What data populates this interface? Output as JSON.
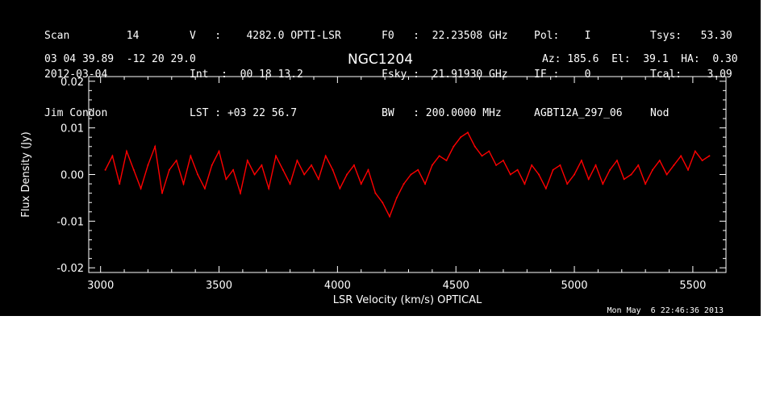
{
  "header": {
    "col1": [
      "Scan         14",
      "2012-03-04",
      "Jim Condon"
    ],
    "col2": [
      "V   :    4282.0 OPTI-LSR",
      "Int  :  00 18 13.2",
      "LST : +03 22 56.7"
    ],
    "col3": [
      "F0   :  22.23508 GHz",
      "Fsky :  21.91930 GHz",
      "BW   : 200.0000 MHz"
    ],
    "col4": [
      "Pol:    I",
      "IF :    0",
      "AGBT12A_297_06"
    ],
    "col5": [
      "Tsys:   53.30",
      "Tcal:    3.09",
      "Nod"
    ],
    "coords": "03 04 39.89  -12 20 29.0",
    "source": "NGC1204",
    "pointing": "Az: 185.6  El:  39.1  HA:  0.30",
    "timestamp": "Mon May  6 22:46:36 2013"
  },
  "chart_data": {
    "type": "line",
    "xlabel": "LSR Velocity (km/s) OPTICAL",
    "ylabel": "Flux Density (Jy)",
    "xlim": [
      2950,
      5640
    ],
    "ylim": [
      -0.021,
      0.021
    ],
    "xticks": [
      3000,
      3500,
      4000,
      4500,
      5000,
      5500
    ],
    "xtick_labels": [
      "3000",
      "3500",
      "4000",
      "4500",
      "5000",
      "5500"
    ],
    "yticks": [
      -0.02,
      -0.01,
      0.0,
      0.01,
      0.02
    ],
    "ytick_labels": [
      "-0.02",
      "-0.01",
      "0.00",
      "0.01",
      "0.02"
    ],
    "series_color": "#ff0000",
    "series": [
      {
        "x": [
          3020,
          3050,
          3080,
          3110,
          3140,
          3170,
          3200,
          3230,
          3260,
          3290,
          3320,
          3350,
          3380,
          3410,
          3440,
          3470,
          3500,
          3530,
          3560,
          3590,
          3620,
          3650,
          3680,
          3710,
          3740,
          3770,
          3800,
          3830,
          3860,
          3890,
          3920,
          3950,
          3980,
          4010,
          4040,
          4070,
          4100,
          4130,
          4160,
          4190,
          4220,
          4250,
          4280,
          4310,
          4340,
          4370,
          4400,
          4430,
          4460,
          4490,
          4520,
          4550,
          4580,
          4610,
          4640,
          4670,
          4700,
          4730,
          4760,
          4790,
          4820,
          4850,
          4880,
          4910,
          4940,
          4970,
          5000,
          5030,
          5060,
          5090,
          5120,
          5150,
          5180,
          5210,
          5240,
          5270,
          5300,
          5330,
          5360,
          5390,
          5420,
          5450,
          5480,
          5510,
          5540,
          5570
        ],
        "values": [
          0.001,
          0.004,
          -0.002,
          0.005,
          0.001,
          -0.003,
          0.002,
          0.006,
          -0.004,
          0.001,
          0.003,
          -0.002,
          0.004,
          0.0,
          -0.003,
          0.002,
          0.005,
          -0.001,
          0.001,
          -0.004,
          0.003,
          0.0,
          0.002,
          -0.003,
          0.004,
          0.001,
          -0.002,
          0.003,
          0.0,
          0.002,
          -0.001,
          0.004,
          0.001,
          -0.003,
          0.0,
          0.002,
          -0.002,
          0.001,
          -0.004,
          -0.006,
          -0.009,
          -0.005,
          -0.002,
          0.0,
          0.001,
          -0.002,
          0.002,
          0.004,
          0.003,
          0.006,
          0.008,
          0.009,
          0.006,
          0.004,
          0.005,
          0.002,
          0.003,
          0.0,
          0.001,
          -0.002,
          0.002,
          0.0,
          -0.003,
          0.001,
          0.002,
          -0.002,
          0.0,
          0.003,
          -0.001,
          0.002,
          -0.002,
          0.001,
          0.003,
          -0.001,
          0.0,
          0.002,
          -0.002,
          0.001,
          0.003,
          0.0,
          0.002,
          0.004,
          0.001,
          0.005,
          0.003,
          0.004
        ]
      }
    ]
  }
}
